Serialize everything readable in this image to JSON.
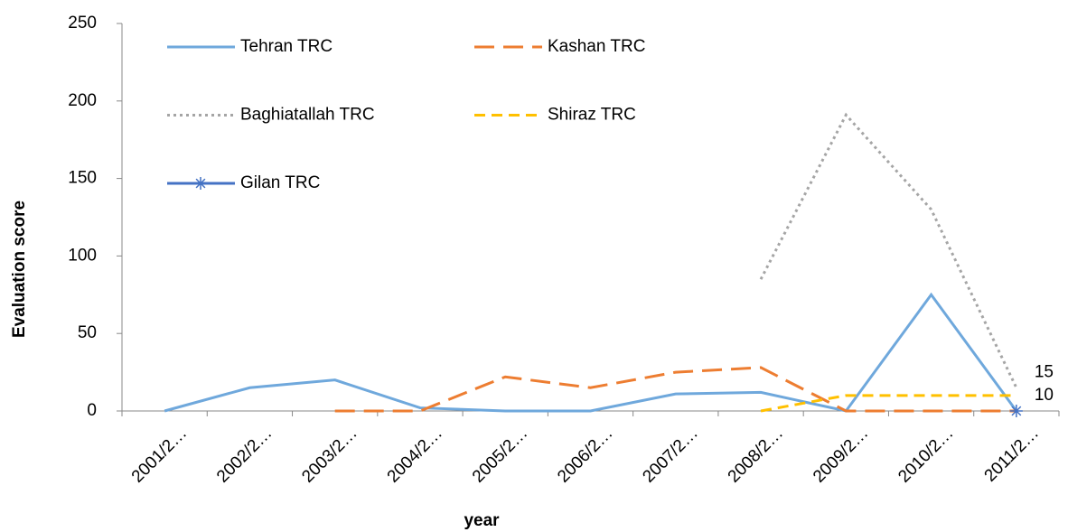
{
  "chart_data": {
    "type": "line",
    "ylabel": "Evaluation score",
    "xlabel": "year",
    "categories": [
      "2001/2…",
      "2002/2…",
      "2003/2…",
      "2004/2…",
      "2005/2…",
      "2006/2…",
      "2007/2…",
      "2008/2…",
      "2009/2…",
      "2010/2…",
      "2011/2…"
    ],
    "ylim": [
      0,
      250
    ],
    "yticks": [
      0,
      50,
      100,
      150,
      200,
      250
    ],
    "grid": false,
    "series": [
      {
        "name": "Tehran TRC",
        "color": "#6fa8dc",
        "dash": "solid",
        "values": [
          0,
          15,
          20,
          2,
          0,
          0,
          11,
          12,
          0,
          75,
          0
        ]
      },
      {
        "name": "Kashan TRC",
        "color": "#ed7d31",
        "dash": "long",
        "values": [
          null,
          null,
          0,
          0,
          22,
          15,
          25,
          28,
          0,
          0,
          0
        ]
      },
      {
        "name": "Baghiatallah TRC",
        "color": "#a5a5a5",
        "dash": "dotted",
        "values": [
          null,
          null,
          null,
          null,
          null,
          null,
          null,
          85,
          191,
          130,
          15
        ],
        "data_labels": "last"
      },
      {
        "name": "Shiraz TRC",
        "color": "#ffc000",
        "dash": "dashed",
        "values": [
          null,
          null,
          null,
          null,
          null,
          null,
          null,
          0,
          10,
          10,
          10
        ],
        "data_labels": "last"
      },
      {
        "name": "Gilan TRC",
        "color": "#4472c4",
        "dash": "solid",
        "marker": "star",
        "values": [
          null,
          null,
          null,
          null,
          null,
          null,
          null,
          null,
          null,
          null,
          0
        ]
      }
    ]
  }
}
